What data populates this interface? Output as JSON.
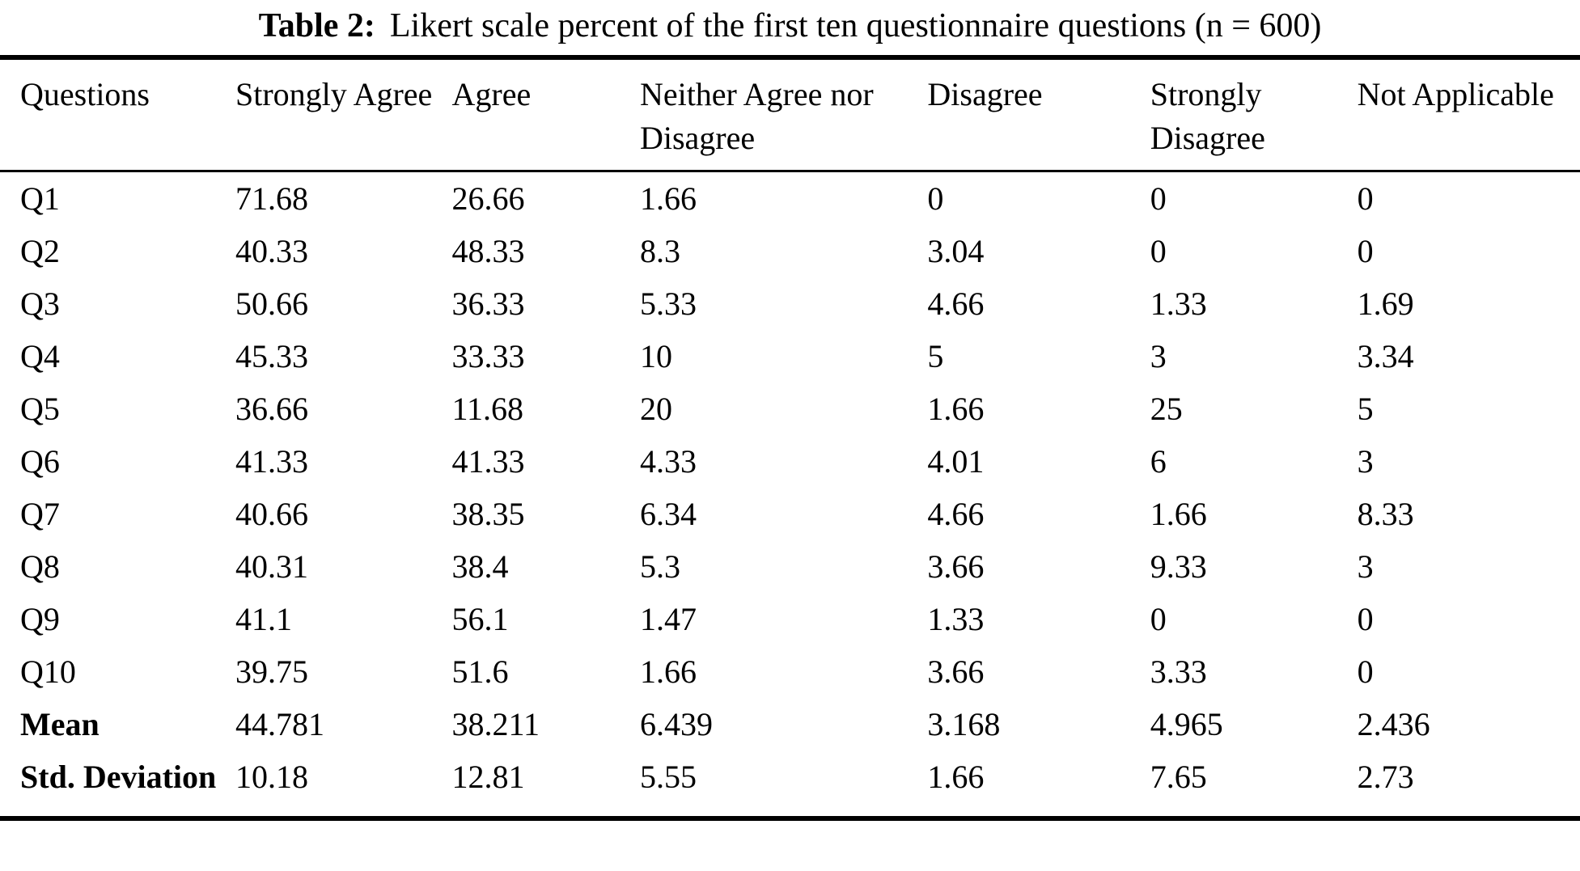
{
  "page": {
    "background_color": "#ffffff",
    "text_color": "#000000"
  },
  "caption": {
    "label": "Table 2:",
    "text": "Likert scale percent of the first ten questionnaire questions (n = 600)"
  },
  "table": {
    "columns": [
      "Questions",
      "Strongly Agree",
      "Agree",
      "Neither Agree nor Disagree",
      "Disagree",
      "Strongly Disagree",
      "Not Applicable"
    ],
    "rows": [
      {
        "label": "Q1",
        "bold": false,
        "values": [
          "71.68",
          "26.66",
          "1.66",
          "0",
          "0",
          "0"
        ]
      },
      {
        "label": "Q2",
        "bold": false,
        "values": [
          "40.33",
          "48.33",
          "8.3",
          "3.04",
          "0",
          "0"
        ]
      },
      {
        "label": "Q3",
        "bold": false,
        "values": [
          "50.66",
          "36.33",
          "5.33",
          "4.66",
          "1.33",
          "1.69"
        ]
      },
      {
        "label": "Q4",
        "bold": false,
        "values": [
          "45.33",
          "33.33",
          "10",
          "5",
          "3",
          "3.34"
        ]
      },
      {
        "label": "Q5",
        "bold": false,
        "values": [
          "36.66",
          "11.68",
          "20",
          "1.66",
          "25",
          "5"
        ]
      },
      {
        "label": "Q6",
        "bold": false,
        "values": [
          "41.33",
          "41.33",
          "4.33",
          "4.01",
          "6",
          "3"
        ]
      },
      {
        "label": "Q7",
        "bold": false,
        "values": [
          "40.66",
          "38.35",
          "6.34",
          "4.66",
          "1.66",
          "8.33"
        ]
      },
      {
        "label": "Q8",
        "bold": false,
        "values": [
          "40.31",
          "38.4",
          "5.3",
          "3.66",
          "9.33",
          "3"
        ]
      },
      {
        "label": "Q9",
        "bold": false,
        "values": [
          "41.1",
          "56.1",
          "1.47",
          "1.33",
          "0",
          "0"
        ]
      },
      {
        "label": "Q10",
        "bold": false,
        "values": [
          "39.75",
          "51.6",
          "1.66",
          "3.66",
          "3.33",
          "0"
        ]
      },
      {
        "label": "Mean",
        "bold": true,
        "values": [
          "44.781",
          "38.211",
          "6.439",
          "3.168",
          "4.965",
          "2.436"
        ]
      },
      {
        "label": "Std. Deviation",
        "bold": true,
        "values": [
          "10.18",
          "12.81",
          "5.55",
          "1.66",
          "7.65",
          "2.73"
        ]
      }
    ]
  }
}
